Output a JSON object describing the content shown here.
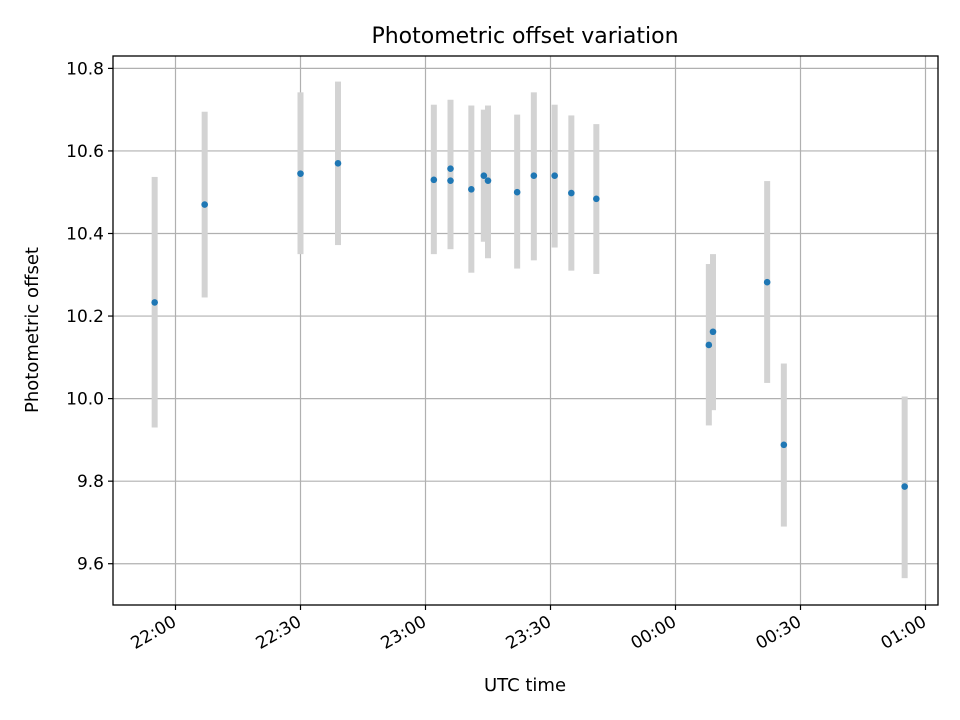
{
  "chart_data": {
    "type": "scatter",
    "title": "Photometric offset variation",
    "xlabel": "UTC time",
    "ylabel": "Photometric offset",
    "grid": true,
    "ylim": [
      9.5,
      10.83
    ],
    "xlim": [
      "21:45",
      "01:03"
    ],
    "x_ticks": [
      "22:00",
      "22:30",
      "23:00",
      "23:30",
      "00:00",
      "00:30",
      "01:00"
    ],
    "y_ticks": [
      "9.6",
      "9.8",
      "10.0",
      "10.2",
      "10.4",
      "10.6",
      "10.8"
    ],
    "colors": {
      "point": "#1f77b4",
      "errorbar": "#d3d3d3",
      "grid": "#b0b0b0"
    },
    "points": [
      {
        "time": "21:55",
        "value": 10.233,
        "low": 9.93,
        "high": 10.537
      },
      {
        "time": "22:07",
        "value": 10.47,
        "low": 10.245,
        "high": 10.695
      },
      {
        "time": "22:30",
        "value": 10.545,
        "low": 10.35,
        "high": 10.742
      },
      {
        "time": "22:39",
        "value": 10.57,
        "low": 10.372,
        "high": 10.768
      },
      {
        "time": "23:02",
        "value": 10.53,
        "low": 10.35,
        "high": 10.712
      },
      {
        "time": "23:06",
        "value": 10.528,
        "low": 10.362,
        "high": 10.693
      },
      {
        "time": "23:06",
        "value": 10.557,
        "low": 10.39,
        "high": 10.724
      },
      {
        "time": "23:11",
        "value": 10.507,
        "low": 10.305,
        "high": 10.71
      },
      {
        "time": "23:14",
        "value": 10.54,
        "low": 10.38,
        "high": 10.7
      },
      {
        "time": "23:15",
        "value": 10.528,
        "low": 10.34,
        "high": 10.71
      },
      {
        "time": "23:22",
        "value": 10.5,
        "low": 10.315,
        "high": 10.688
      },
      {
        "time": "23:26",
        "value": 10.54,
        "low": 10.335,
        "high": 10.742
      },
      {
        "time": "23:31",
        "value": 10.54,
        "low": 10.366,
        "high": 10.712
      },
      {
        "time": "23:35",
        "value": 10.498,
        "low": 10.31,
        "high": 10.686
      },
      {
        "time": "23:41",
        "value": 10.484,
        "low": 10.302,
        "high": 10.665
      },
      {
        "time": "00:08",
        "value": 10.13,
        "low": 9.935,
        "high": 10.326
      },
      {
        "time": "00:09",
        "value": 10.162,
        "low": 9.972,
        "high": 10.35
      },
      {
        "time": "00:22",
        "value": 10.282,
        "low": 10.038,
        "high": 10.527
      },
      {
        "time": "00:26",
        "value": 9.888,
        "low": 9.69,
        "high": 10.085
      },
      {
        "time": "00:55",
        "value": 9.787,
        "low": 9.565,
        "high": 10.005
      }
    ]
  }
}
